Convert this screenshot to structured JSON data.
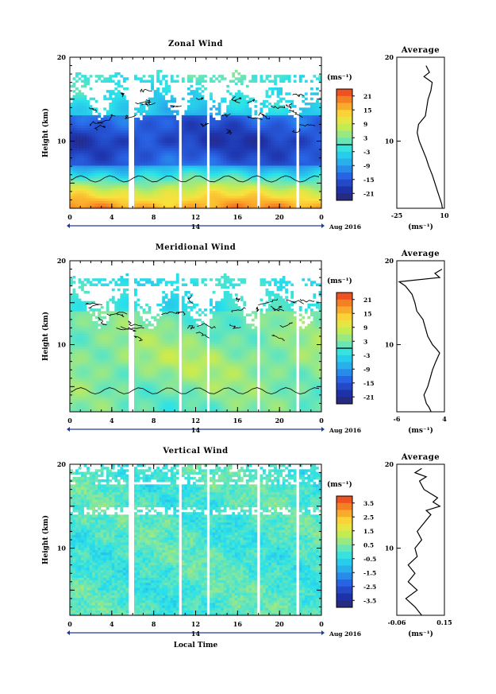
{
  "chart_data": [
    {
      "type": "heatmap",
      "title": "Zonal Wind",
      "ylabel": "Height (km)",
      "x_ticks": [
        "0",
        "4",
        "8",
        "12",
        "16",
        "20",
        "0"
      ],
      "day_label": "14",
      "date_label": "Aug 2016",
      "ylim": [
        2,
        20
      ],
      "y_ticks": [
        "20",
        "10"
      ],
      "colorbar_unit": "(ms⁻¹)",
      "colorbar_ticks": [
        "21",
        "15",
        "9",
        "3",
        "-3",
        "-9",
        "-15",
        "-21"
      ],
      "colorbar_range": [
        -24,
        24
      ],
      "zero_line": 0,
      "average": {
        "title": "Average",
        "xlabel": "(ms⁻¹)",
        "x_ticks": [
          "-25",
          "10"
        ],
        "xlim": [
          -25,
          10
        ],
        "y_ticks": [
          "20",
          "10"
        ],
        "profile": [
          [
            8.5,
            2
          ],
          [
            8,
            2.5
          ],
          [
            7,
            3
          ],
          [
            5,
            4
          ],
          [
            3,
            5
          ],
          [
            1,
            6
          ],
          [
            -1.5,
            7
          ],
          [
            -3.5,
            8
          ],
          [
            -6,
            9
          ],
          [
            -8.5,
            10
          ],
          [
            -10,
            11
          ],
          [
            -9,
            12
          ],
          [
            -4,
            13
          ],
          [
            -3,
            14
          ],
          [
            -2,
            15
          ],
          [
            0,
            16
          ],
          [
            1,
            17
          ],
          [
            -5,
            17.7
          ],
          [
            -1,
            18.2
          ],
          [
            -3.5,
            19
          ]
        ]
      }
    },
    {
      "type": "heatmap",
      "title": "Meridional Wind",
      "ylabel": "Height (km)",
      "x_ticks": [
        "0",
        "4",
        "8",
        "12",
        "16",
        "20",
        "0"
      ],
      "day_label": "14",
      "date_label": "Aug 2016",
      "ylim": [
        2,
        20
      ],
      "y_ticks": [
        "20",
        "10"
      ],
      "colorbar_unit": "(ms⁻¹)",
      "colorbar_ticks": [
        "21",
        "15",
        "9",
        "3",
        "-3",
        "-9",
        "-15",
        "-21"
      ],
      "colorbar_range": [
        -24,
        24
      ],
      "zero_line": 0,
      "average": {
        "title": "Average",
        "xlabel": "(ms⁻¹)",
        "x_ticks": [
          "-6",
          "4"
        ],
        "xlim": [
          -6,
          4
        ],
        "y_ticks": [
          "20",
          "10"
        ],
        "profile": [
          [
            1.2,
            2
          ],
          [
            0.8,
            2.5
          ],
          [
            0.2,
            3
          ],
          [
            -0.3,
            4
          ],
          [
            0.5,
            5
          ],
          [
            1,
            6
          ],
          [
            1.5,
            7
          ],
          [
            2.2,
            8
          ],
          [
            3,
            9
          ],
          [
            2.3,
            9.5
          ],
          [
            1.5,
            10
          ],
          [
            0.5,
            11
          ],
          [
            0,
            12
          ],
          [
            -0.5,
            13
          ],
          [
            -1.8,
            14
          ],
          [
            -2.2,
            15
          ],
          [
            -2.8,
            16
          ],
          [
            -4.2,
            17
          ],
          [
            -5.5,
            17.5
          ],
          [
            3,
            18
          ],
          [
            2,
            18.5
          ],
          [
            3.5,
            19
          ]
        ]
      }
    },
    {
      "type": "heatmap",
      "title": "Vertical Wind",
      "ylabel": "Height (km)",
      "xlabel": "Local Time",
      "x_ticks": [
        "0",
        "4",
        "8",
        "12",
        "16",
        "20",
        "0"
      ],
      "day_label": "14",
      "date_label": "Aug 2016",
      "ylim": [
        2,
        20
      ],
      "y_ticks": [
        "20",
        "10"
      ],
      "colorbar_unit": "(ms⁻¹)",
      "colorbar_ticks": [
        "3.5",
        "2.5",
        "1.5",
        "0.5",
        "-0.5",
        "-1.5",
        "-2.5",
        "-3.5"
      ],
      "colorbar_range": [
        -4,
        4
      ],
      "average": {
        "title": "Average",
        "xlabel": "(ms⁻¹)",
        "x_ticks": [
          "-0.06",
          "0.15"
        ],
        "xlim": [
          -0.06,
          0.15
        ],
        "y_ticks": [
          "20",
          "10"
        ],
        "profile": [
          [
            0.05,
            2
          ],
          [
            0.02,
            3
          ],
          [
            -0.02,
            4
          ],
          [
            0.03,
            5
          ],
          [
            -0.01,
            6
          ],
          [
            0.02,
            7
          ],
          [
            -0.01,
            8
          ],
          [
            0.03,
            9
          ],
          [
            0.02,
            10
          ],
          [
            0.05,
            11
          ],
          [
            0.03,
            12
          ],
          [
            0.06,
            13
          ],
          [
            0.09,
            14
          ],
          [
            0.07,
            14.5
          ],
          [
            0.13,
            15
          ],
          [
            0.1,
            15.5
          ],
          [
            0.12,
            16
          ],
          [
            0.06,
            17
          ],
          [
            0.04,
            18
          ],
          [
            0.07,
            18.5
          ],
          [
            0.02,
            19
          ],
          [
            0.05,
            19.5
          ]
        ]
      }
    }
  ]
}
